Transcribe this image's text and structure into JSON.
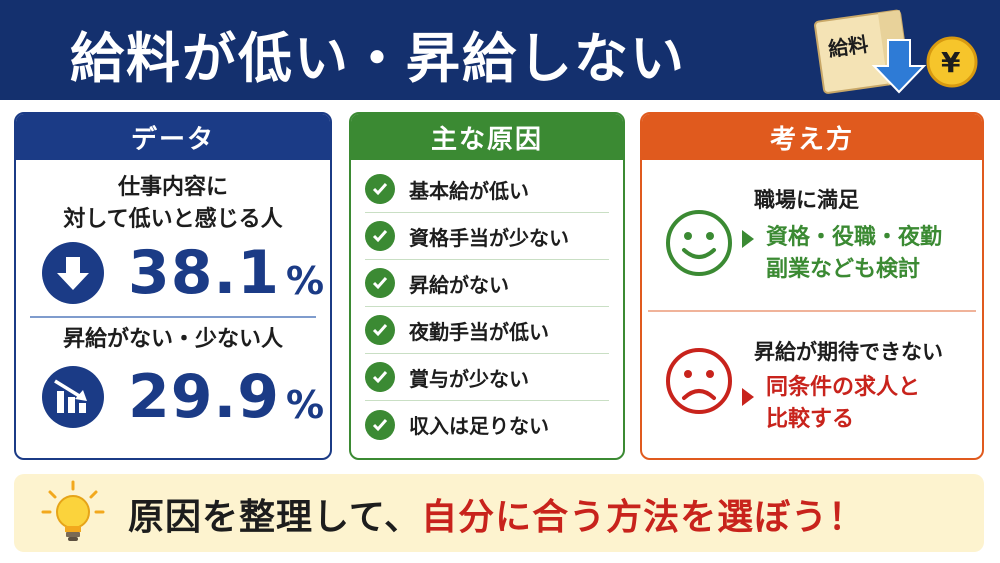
{
  "header": {
    "title": "給料が低い・昇給しない",
    "illustration_label": "給料",
    "currency_symbol": "¥"
  },
  "data_panel": {
    "heading": "データ",
    "stats": [
      {
        "label_line1": "仕事内容に",
        "label_line2": "対して低いと感じる人",
        "value": "38.1",
        "unit": "%",
        "icon": "arrow-down-icon"
      },
      {
        "label_line1": "昇給がない・少ない人",
        "value": "29.9",
        "unit": "%",
        "icon": "declining-bars-icon"
      }
    ]
  },
  "cause_panel": {
    "heading": "主な原因",
    "items": [
      "基本給が低い",
      "資格手当が少ない",
      "昇給がない",
      "夜勤手当が低い",
      "賞与が少ない",
      "収入は足りない"
    ]
  },
  "think_panel": {
    "heading": "考え方",
    "satisfied": {
      "title": "職場に満足",
      "advice_line1": "資格・役職・夜勤",
      "advice_line2": "副業なども検討",
      "color": "#3b8a33"
    },
    "unsatisfied": {
      "title": "昇給が期待できない",
      "advice_line1": "同条件の求人と",
      "advice_line2": "比較する",
      "color": "#c8231c"
    }
  },
  "banner": {
    "text_dark": "原因を整理して、",
    "text_red": "自分に合う方法を選ぼう！"
  },
  "colors": {
    "header": "#14306e",
    "data_accent": "#1b3b86",
    "cause_accent": "#3b8a33",
    "think_accent": "#e05a1e",
    "banner_bg": "#fdf3cf",
    "emphasis_red": "#c8231c"
  }
}
